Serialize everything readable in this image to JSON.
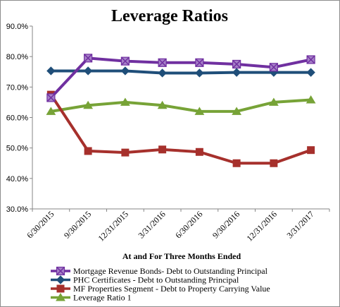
{
  "chart_data": {
    "type": "line",
    "title": "Leverage Ratios",
    "xlabel": "At and For Three Months Ended",
    "ylabel": "",
    "ylim": [
      30,
      90
    ],
    "yticks": [
      30,
      40,
      50,
      60,
      70,
      80,
      90
    ],
    "ytick_labels": [
      "30.0%",
      "40.0%",
      "50.0%",
      "60.0%",
      "70.0%",
      "80.0%",
      "90.0%"
    ],
    "grid": false,
    "legend_position": "bottom",
    "categories": [
      "6/30/2015",
      "9/30/2015",
      "12/31/2015",
      "3/31/2016",
      "6/30/2016",
      "9/30/2016",
      "12/31/2016",
      "3/31/2017"
    ],
    "series": [
      {
        "name": "Mortgage Revenue Bonds- Debt to Outstanding Principal",
        "values": [
          66.5,
          79.5,
          78.5,
          78.0,
          78.0,
          77.5,
          76.5,
          79.0
        ],
        "color": "#7030a0",
        "marker": "x-square"
      },
      {
        "name": "PHC Certificates - Debt to Outstanding Principal",
        "values": [
          75.3,
          75.3,
          75.3,
          74.6,
          74.6,
          74.8,
          74.8,
          74.8
        ],
        "color": "#1f4e79",
        "marker": "diamond"
      },
      {
        "name": "MF Properties Segment - Debt to Property Carrying Value",
        "values": [
          67.5,
          49.0,
          48.5,
          49.5,
          48.7,
          45.0,
          45.0,
          49.3
        ],
        "color": "#a6302c",
        "marker": "square"
      },
      {
        "name": "Leverage Ratio 1",
        "values": [
          62.0,
          64.0,
          65.0,
          64.0,
          62.0,
          62.0,
          65.0,
          65.8
        ],
        "color": "#77a337",
        "marker": "triangle"
      }
    ]
  }
}
